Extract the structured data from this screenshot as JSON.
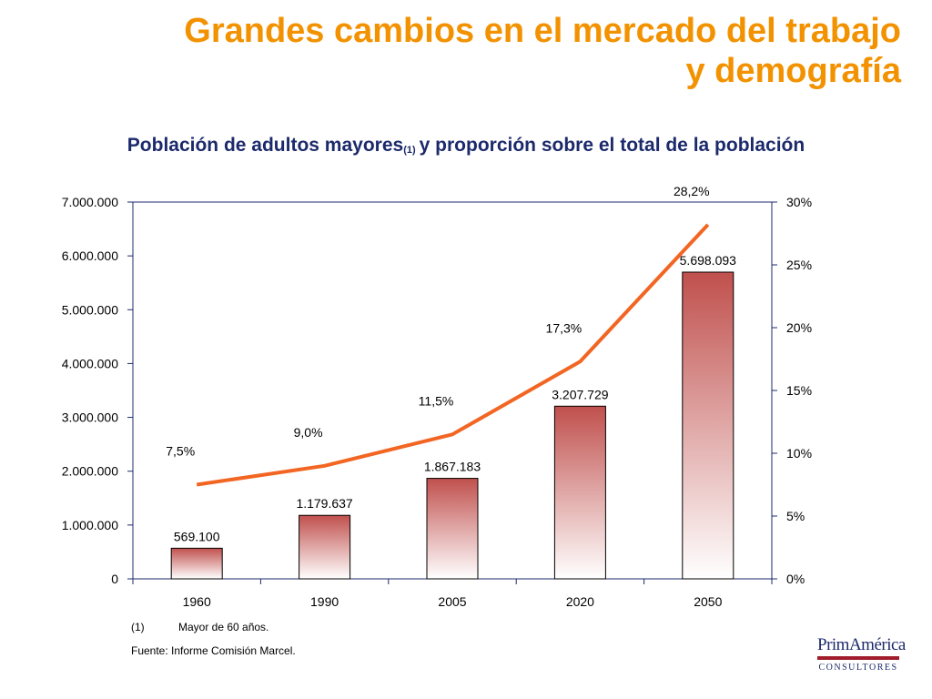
{
  "slide": {
    "title_line1": "Grandes cambios en el mercado del trabajo",
    "title_line2": "y demografía"
  },
  "chart_data": {
    "type": "bar",
    "title": "Población de adultos mayores",
    "title_superscript": "(1)",
    "title_rest": "y proporción sobre el total de la población",
    "categories": [
      "1960",
      "1990",
      "2005",
      "2020",
      "2050"
    ],
    "series": [
      {
        "kind": "bar",
        "axis": "left",
        "values": [
          569100,
          1179637,
          1867183,
          3207729,
          5698093
        ],
        "labels": [
          "569.100",
          "1.179.637",
          "1.867.183",
          "3.207.729",
          "5.698.093"
        ],
        "color_top": "#c0504d",
        "color_bottom": "#ffffff"
      },
      {
        "kind": "line",
        "axis": "right",
        "values": [
          7.5,
          9.0,
          11.5,
          17.3,
          28.2
        ],
        "labels": [
          "7,5%",
          "9,0%",
          "11,5%",
          "17,3%",
          "28,2%"
        ],
        "color": "#f26522"
      }
    ],
    "y_left": {
      "ylim": [
        0,
        7000000
      ],
      "ticks": [
        "0",
        "1.000.000",
        "2.000.000",
        "3.000.000",
        "4.000.000",
        "5.000.000",
        "6.000.000",
        "7.000.000"
      ]
    },
    "y_right": {
      "ylim": [
        0,
        30
      ],
      "ticks": [
        "0%",
        "5%",
        "10%",
        "15%",
        "20%",
        "25%",
        "30%"
      ]
    },
    "axis_color": "#1c2a6b",
    "grid": false
  },
  "footnotes": {
    "note_marker": "(1)",
    "note_text": "Mayor de 60 años.",
    "source": "Fuente: Informe Comisión Marcel."
  },
  "logo": {
    "name": "PrimAmérica",
    "sub": "CONSULTORES"
  }
}
